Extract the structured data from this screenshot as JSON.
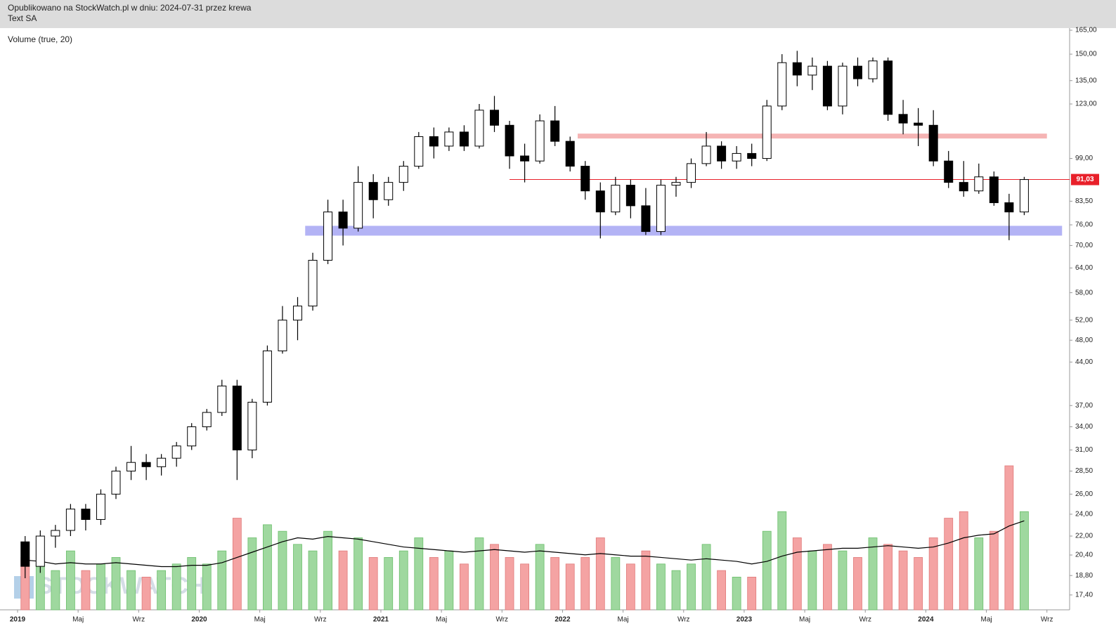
{
  "header": {
    "line1": "Opublikowano na StockWatch.pl w dniu: 2024-07-31 przez krewa",
    "line2": "Text SA"
  },
  "indicator_label": "Volume (true, 20)",
  "chart_data": {
    "type": "candlestick",
    "log_y": true,
    "x": [
      "2019-01",
      "2019-02",
      "2019-03",
      "2019-04",
      "2019-05",
      "2019-06",
      "2019-07",
      "2019-08",
      "2019-09",
      "2019-10",
      "2019-11",
      "2019-12",
      "2020-01",
      "2020-02",
      "2020-03",
      "2020-04",
      "2020-05",
      "2020-06",
      "2020-07",
      "2020-08",
      "2020-09",
      "2020-10",
      "2020-11",
      "2020-12",
      "2021-01",
      "2021-02",
      "2021-03",
      "2021-04",
      "2021-05",
      "2021-06",
      "2021-07",
      "2021-08",
      "2021-09",
      "2021-10",
      "2021-11",
      "2021-12",
      "2022-01",
      "2022-02",
      "2022-03",
      "2022-04",
      "2022-05",
      "2022-06",
      "2022-07",
      "2022-08",
      "2022-09",
      "2022-10",
      "2022-11",
      "2022-12",
      "2023-01",
      "2023-02",
      "2023-03",
      "2023-04",
      "2023-05",
      "2023-06",
      "2023-07",
      "2023-08",
      "2023-09",
      "2023-10",
      "2023-11",
      "2023-12",
      "2024-01",
      "2024-02",
      "2024-03",
      "2024-04",
      "2024-05",
      "2024-06",
      "2024-07"
    ],
    "open": [
      21.5,
      19.5,
      22,
      22.5,
      24.5,
      23.5,
      26,
      28.5,
      29.5,
      29,
      30,
      31.5,
      34,
      36,
      40,
      31,
      37.5,
      46,
      52,
      55,
      66,
      80,
      75,
      90,
      84,
      90,
      96,
      108,
      104,
      110,
      104,
      120,
      113,
      100,
      98,
      115,
      106,
      96,
      87,
      80,
      89,
      82,
      74,
      89,
      90,
      97,
      104,
      98,
      101,
      99,
      122,
      145,
      138,
      143,
      122,
      143,
      136,
      146,
      118,
      114,
      113,
      98,
      90,
      87,
      92,
      83,
      80
    ],
    "high": [
      22,
      22.5,
      23,
      25,
      25,
      26.5,
      29,
      31.5,
      30.5,
      30.5,
      32,
      34.5,
      36.5,
      41,
      41,
      38,
      47,
      55,
      57,
      68,
      84,
      84,
      96,
      93,
      92,
      98,
      110,
      112,
      112,
      113,
      123,
      127,
      115,
      105,
      118,
      122,
      108,
      98,
      90,
      92,
      91,
      88,
      91,
      92,
      99,
      110,
      106,
      104,
      105,
      125,
      150,
      152,
      148,
      146,
      145,
      148,
      148,
      148,
      125,
      121,
      120,
      102,
      98,
      97,
      94,
      86,
      92
    ],
    "low": [
      18.6,
      19,
      21,
      22,
      22.5,
      23,
      25.5,
      27.5,
      27.5,
      28,
      29,
      31,
      33.5,
      35.5,
      27.5,
      30,
      37,
      45.5,
      48,
      54,
      65,
      70,
      74,
      78,
      82,
      87,
      95,
      99,
      102,
      102,
      103,
      110,
      95,
      90,
      97,
      104,
      94,
      84,
      72,
      79,
      78,
      73,
      73,
      85,
      88,
      96,
      95,
      95,
      96,
      98,
      120,
      132,
      130,
      120,
      118,
      132,
      134,
      115,
      109,
      104,
      96,
      88,
      85,
      86,
      82,
      71.5,
      79
    ],
    "close": [
      19.5,
      22,
      22.5,
      24.5,
      23.5,
      26,
      28.5,
      29.5,
      29,
      30,
      31.5,
      34,
      36,
      40,
      31,
      37.5,
      46,
      52,
      55,
      66,
      80,
      75,
      90,
      84,
      90,
      96,
      108,
      104,
      110,
      104,
      120,
      113,
      100,
      98,
      115,
      106,
      96,
      87,
      80,
      89,
      82,
      74,
      89,
      90,
      97,
      104,
      98,
      101,
      99,
      122,
      145,
      138,
      143,
      122,
      143,
      136,
      146,
      118,
      114,
      113,
      98,
      90,
      87,
      92,
      83,
      80,
      91.03
    ],
    "volume": [
      40,
      35,
      30,
      45,
      30,
      35,
      40,
      30,
      25,
      30,
      35,
      40,
      35,
      45,
      70,
      55,
      65,
      60,
      50,
      45,
      60,
      45,
      55,
      40,
      40,
      45,
      55,
      40,
      45,
      35,
      55,
      50,
      40,
      35,
      50,
      40,
      35,
      40,
      55,
      40,
      35,
      45,
      35,
      30,
      35,
      50,
      30,
      25,
      25,
      60,
      75,
      55,
      45,
      50,
      45,
      40,
      55,
      50,
      45,
      40,
      55,
      70,
      75,
      55,
      60,
      110,
      75
    ],
    "volume_ma": [
      38,
      37,
      35,
      36,
      35,
      35,
      36,
      35,
      34,
      33,
      33,
      34,
      34,
      36,
      40,
      44,
      48,
      52,
      55,
      54,
      56,
      55,
      54,
      52,
      50,
      48,
      47,
      46,
      45,
      44,
      45,
      46,
      45,
      44,
      45,
      44,
      43,
      42,
      43,
      42,
      41,
      41,
      40,
      39,
      38,
      39,
      38,
      37,
      35,
      37,
      41,
      44,
      45,
      46,
      47,
      47,
      48,
      49,
      48,
      47,
      48,
      51,
      55,
      57,
      58,
      64,
      68
    ],
    "up_color": "#ffffff",
    "down_color": "#000000",
    "volume_up_color": "#9fd89f",
    "volume_down_color": "#f4a3a3",
    "volume_ma_color": "#000000",
    "ylim": [
      16.4,
      166.4
    ],
    "yticks": [
      {
        "value": 165,
        "label": "165,00"
      },
      {
        "value": 150,
        "label": "150,00"
      },
      {
        "value": 135,
        "label": "135,00"
      },
      {
        "value": 123,
        "label": "123,00"
      },
      {
        "value": 99,
        "label": "99,00"
      },
      {
        "value": 83.5,
        "label": "83,50"
      },
      {
        "value": 76,
        "label": "76,00"
      },
      {
        "value": 70,
        "label": "70,00"
      },
      {
        "value": 64,
        "label": "64,00"
      },
      {
        "value": 58,
        "label": "58,00"
      },
      {
        "value": 52,
        "label": "52,00"
      },
      {
        "value": 48,
        "label": "48,00"
      },
      {
        "value": 44,
        "label": "44,00"
      },
      {
        "value": 37,
        "label": "37,00"
      },
      {
        "value": 34,
        "label": "34,00"
      },
      {
        "value": 31,
        "label": "31,00"
      },
      {
        "value": 28.5,
        "label": "28,50"
      },
      {
        "value": 26,
        "label": "26,00"
      },
      {
        "value": 24,
        "label": "24,00"
      },
      {
        "value": 22,
        "label": "22,00"
      },
      {
        "value": 20.4,
        "label": "20,40"
      },
      {
        "value": 18.8,
        "label": "18,80"
      },
      {
        "value": 17.4,
        "label": "17,40"
      }
    ],
    "xticks": [
      {
        "value": "2019-01",
        "label": "2019"
      },
      {
        "value": "2019-05",
        "label": "Maj"
      },
      {
        "value": "2019-09",
        "label": "Wrz"
      },
      {
        "value": "2020-01",
        "label": "2020"
      },
      {
        "value": "2020-05",
        "label": "Maj"
      },
      {
        "value": "2020-09",
        "label": "Wrz"
      },
      {
        "value": "2021-01",
        "label": "2021"
      },
      {
        "value": "2021-05",
        "label": "Maj"
      },
      {
        "value": "2021-09",
        "label": "Wrz"
      },
      {
        "value": "2022-01",
        "label": "2022"
      },
      {
        "value": "2022-05",
        "label": "Maj"
      },
      {
        "value": "2022-09",
        "label": "Wrz"
      },
      {
        "value": "2023-01",
        "label": "2023"
      },
      {
        "value": "2023-05",
        "label": "Maj"
      },
      {
        "value": "2023-09",
        "label": "Wrz"
      },
      {
        "value": "2024-01",
        "label": "2024"
      },
      {
        "value": "2024-05",
        "label": "Maj"
      },
      {
        "value": "2024-09",
        "label": "Wrz"
      }
    ],
    "hline": {
      "value": 91.03,
      "label": "91,03",
      "from": "2021-09",
      "color": "#e8202a"
    },
    "zones": [
      {
        "from": "2022-02",
        "to": "2024-09",
        "low": 107.2,
        "high": 109.3,
        "color": "#f5b4b4"
      },
      {
        "from": "2020-08",
        "to": "2024-10",
        "low": 72.8,
        "high": 75.7,
        "color": "#b3b3f5"
      }
    ],
    "watermark": "STOCKWATCH"
  }
}
